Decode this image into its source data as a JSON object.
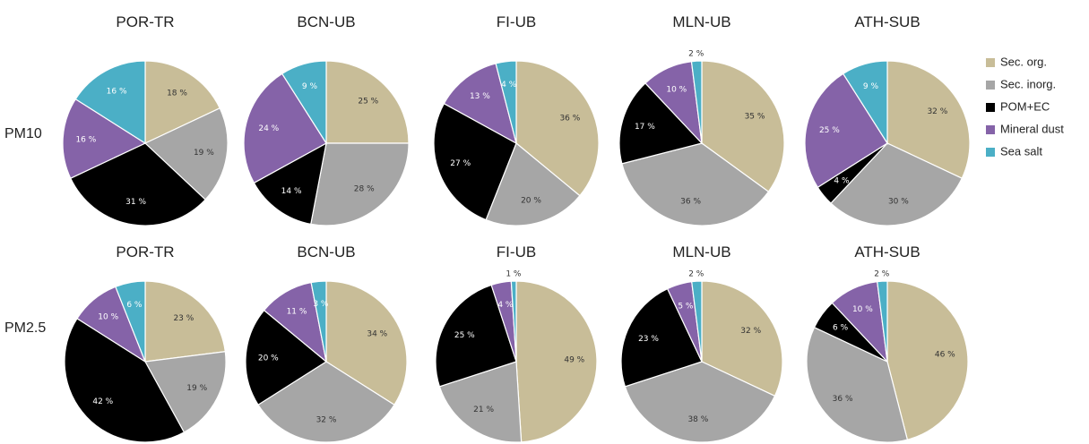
{
  "legend": [
    {
      "label": "Sec. org.",
      "color": "#c8bd98"
    },
    {
      "label": "Sec. inorg.",
      "color": "#a6a6a6"
    },
    {
      "label": "POM+EC",
      "color": "#000000"
    },
    {
      "label": "Mineral dust",
      "color": "#8563a8"
    },
    {
      "label": "Sea salt",
      "color": "#4bafc6"
    }
  ],
  "chart_data": {
    "type": "pie",
    "categories": [
      "Sec. org.",
      "Sec. inorg.",
      "POM+EC",
      "Mineral dust",
      "Sea salt"
    ],
    "colors": [
      "#c8bd98",
      "#a6a6a6",
      "#000000",
      "#8563a8",
      "#4bafc6"
    ],
    "value_format": "{v} %",
    "rows": [
      {
        "label": "PM10",
        "pies": [
          {
            "title": "POR-TR",
            "values": [
              18,
              19,
              31,
              16,
              16
            ]
          },
          {
            "title": "BCN-UB",
            "values": [
              25,
              28,
              14,
              24,
              9
            ]
          },
          {
            "title": "FI-UB",
            "values": [
              36,
              20,
              27,
              13,
              4
            ]
          },
          {
            "title": "MLN-UB",
            "values": [
              35,
              36,
              17,
              10,
              2
            ]
          },
          {
            "title": "ATH-SUB",
            "values": [
              32,
              30,
              4,
              25,
              9
            ]
          }
        ]
      },
      {
        "label": "PM2.5",
        "pies": [
          {
            "title": "POR-TR",
            "values": [
              23,
              19,
              42,
              10,
              6
            ]
          },
          {
            "title": "BCN-UB",
            "values": [
              34,
              32,
              20,
              11,
              3
            ]
          },
          {
            "title": "FI-UB",
            "values": [
              49,
              21,
              25,
              4,
              1
            ]
          },
          {
            "title": "MLN-UB",
            "values": [
              32,
              38,
              23,
              5,
              2
            ]
          },
          {
            "title": "ATH-SUB",
            "values": [
              46,
              36,
              6,
              10,
              2
            ]
          }
        ]
      }
    ]
  }
}
